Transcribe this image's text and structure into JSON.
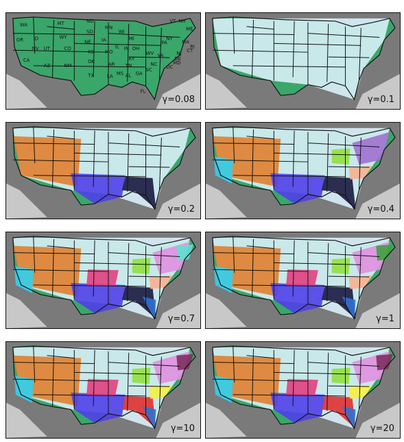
{
  "panels": [
    {
      "gamma": "γ=0.08",
      "regions": [
        [
          "#3aa66a"
        ]
      ]
    },
    {
      "gamma": "γ=0.1",
      "regions": [
        [
          "#3aa66a"
        ],
        [
          "#d8f0f8"
        ]
      ]
    },
    {
      "gamma": "γ=0.2",
      "regions": [
        [
          "#3aa66a"
        ],
        [
          "#d8f0f8"
        ],
        [
          "#e08030"
        ],
        [
          "#5040e8"
        ],
        [
          "#1a1a40"
        ]
      ]
    },
    {
      "gamma": "γ=0.4",
      "regions": [
        [
          "#3aa66a"
        ],
        [
          "#d8f0f8"
        ],
        [
          "#e08030"
        ],
        [
          "#5040e8"
        ],
        [
          "#1a1a40"
        ],
        [
          "#a070d0"
        ],
        [
          "#90e040"
        ],
        [
          "#30d0f0"
        ],
        [
          "#f8b090"
        ]
      ]
    },
    {
      "gamma": "γ=0.7",
      "regions": [
        [
          "#3aa66a"
        ],
        [
          "#d8f0f8"
        ],
        [
          "#e08030"
        ],
        [
          "#5040e8"
        ],
        [
          "#1a1a40"
        ],
        [
          "#e090e0"
        ],
        [
          "#90e040"
        ],
        [
          "#30d0f0"
        ],
        [
          "#f8b090"
        ],
        [
          "#3070d0"
        ],
        [
          "#e04080"
        ],
        [
          "#60e0d0"
        ]
      ]
    },
    {
      "gamma": "γ=1",
      "regions": [
        [
          "#3aa66a"
        ],
        [
          "#d8f0f8"
        ],
        [
          "#e08030"
        ],
        [
          "#5040e8"
        ],
        [
          "#1a1a40"
        ],
        [
          "#e090e0"
        ],
        [
          "#90e040"
        ],
        [
          "#30d0f0"
        ],
        [
          "#f8b090"
        ],
        [
          "#3070d0"
        ],
        [
          "#e04080"
        ],
        [
          "#40a040"
        ]
      ]
    },
    {
      "gamma": "γ=10",
      "regions": [
        [
          "#3aa66a"
        ],
        [
          "#d8f0f8"
        ],
        [
          "#e08030"
        ],
        [
          "#5040e8"
        ],
        [
          "#e03030"
        ],
        [
          "#e090e0"
        ],
        [
          "#90e040"
        ],
        [
          "#30d0f0"
        ],
        [
          "#f8f040"
        ],
        [
          "#3070d0"
        ],
        [
          "#e04080"
        ],
        [
          "#803060"
        ]
      ]
    },
    {
      "gamma": "γ=20",
      "regions": [
        [
          "#3aa66a"
        ],
        [
          "#d8f0f8"
        ],
        [
          "#e08030"
        ],
        [
          "#5040e8"
        ],
        [
          "#e03030"
        ],
        [
          "#e090e0"
        ],
        [
          "#90e040"
        ],
        [
          "#30d0f0"
        ],
        [
          "#f8f040"
        ],
        [
          "#3070d0"
        ],
        [
          "#e04080"
        ],
        [
          "#803060"
        ]
      ]
    }
  ],
  "state_labels": [
    "WA",
    "OR",
    "CA",
    "ID",
    "NV",
    "MT",
    "WY",
    "UT",
    "AZ",
    "CO",
    "NM",
    "ND",
    "SD",
    "NE",
    "KS",
    "OK",
    "TX",
    "MN",
    "IA",
    "MO",
    "AR",
    "LA",
    "WI",
    "IL",
    "MI",
    "IN",
    "OH",
    "KY",
    "TN",
    "MS",
    "AL",
    "GA",
    "FL",
    "SC",
    "NC",
    "VA",
    "WV",
    "PA",
    "NY",
    "VT",
    "NH",
    "ME",
    "MA",
    "RI",
    "CT",
    "NJ",
    "DE",
    "MD",
    "DC"
  ]
}
